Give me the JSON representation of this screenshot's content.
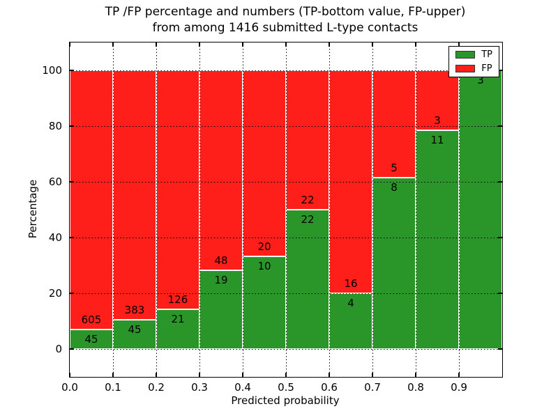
{
  "title": {
    "line1": "TP /FP percentage and numbers (TP-bottom value, FP-upper)",
    "line2": "from among 1416 submitted L-type contacts"
  },
  "axes": {
    "xlabel": "Predicted probability",
    "ylabel": "Percentage",
    "x_tick_labels": [
      "0.0",
      "0.1",
      "0.2",
      "0.3",
      "0.4",
      "0.5",
      "0.6",
      "0.7",
      "0.8",
      "0.9"
    ],
    "y_tick_labels": [
      "0",
      "20",
      "40",
      "60",
      "80",
      "100"
    ],
    "y_tick_values": [
      0,
      20,
      40,
      60,
      80,
      100
    ]
  },
  "legend": {
    "items": [
      {
        "label": "TP",
        "color_key": "tp"
      },
      {
        "label": "FP",
        "color_key": "fp"
      }
    ]
  },
  "colors": {
    "tp": "#2A962A",
    "fp": "#FF1F1A",
    "grid": "#000000",
    "spine": "#000000",
    "bar_edge": "#FFFFFF",
    "background": "#FFFFFF",
    "text": "#000000"
  },
  "chart_data": {
    "type": "bar",
    "stacked": true,
    "values_shown": "percent_with_count_labels",
    "grid": "dotted-black",
    "legend_position": "upper right",
    "title": "TP /FP percentage and numbers (TP-bottom value, FP-upper) from among 1416 submitted L-type contacts",
    "xlabel": "Predicted probability",
    "ylabel": "Percentage",
    "xlim": [
      0.0,
      1.0
    ],
    "ylim": [
      -10,
      110
    ],
    "bin_width": 0.1,
    "categories": [
      "0.0-0.1",
      "0.1-0.2",
      "0.2-0.3",
      "0.3-0.4",
      "0.4-0.5",
      "0.5-0.6",
      "0.6-0.7",
      "0.7-0.8",
      "0.8-0.9",
      "0.9-1.0"
    ],
    "series": [
      {
        "name": "TP",
        "counts": [
          45,
          45,
          21,
          19,
          10,
          22,
          4,
          8,
          11,
          3
        ],
        "percent": [
          6.9,
          10.5,
          14.3,
          28.4,
          33.3,
          50.0,
          20.0,
          61.5,
          78.6,
          100.0
        ]
      },
      {
        "name": "FP",
        "counts": [
          605,
          383,
          126,
          48,
          20,
          22,
          16,
          5,
          3,
          0
        ],
        "percent": [
          93.1,
          89.5,
          85.7,
          71.6,
          66.7,
          50.0,
          80.0,
          38.5,
          21.4,
          0.0
        ]
      }
    ],
    "total_contacts": 1416
  }
}
